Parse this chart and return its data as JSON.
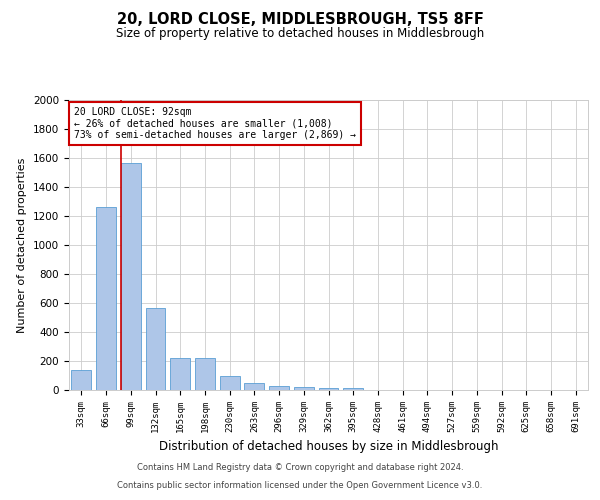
{
  "title": "20, LORD CLOSE, MIDDLESBROUGH, TS5 8FF",
  "subtitle": "Size of property relative to detached houses in Middlesbrough",
  "xlabel": "Distribution of detached houses by size in Middlesbrough",
  "ylabel": "Number of detached properties",
  "categories": [
    "33sqm",
    "66sqm",
    "99sqm",
    "132sqm",
    "165sqm",
    "198sqm",
    "230sqm",
    "263sqm",
    "296sqm",
    "329sqm",
    "362sqm",
    "395sqm",
    "428sqm",
    "461sqm",
    "494sqm",
    "527sqm",
    "559sqm",
    "592sqm",
    "625sqm",
    "658sqm",
    "691sqm"
  ],
  "values": [
    140,
    1265,
    1565,
    565,
    220,
    220,
    95,
    50,
    25,
    20,
    15,
    15,
    0,
    0,
    0,
    0,
    0,
    0,
    0,
    0,
    0
  ],
  "bar_color": "#aec6e8",
  "bar_edge_color": "#5a9fd4",
  "vline_x_index": 2,
  "vline_color": "#cc0000",
  "annotation_text": "20 LORD CLOSE: 92sqm\n← 26% of detached houses are smaller (1,008)\n73% of semi-detached houses are larger (2,869) →",
  "annotation_box_color": "#ffffff",
  "annotation_box_edge": "#cc0000",
  "ylim": [
    0,
    2000
  ],
  "yticks": [
    0,
    200,
    400,
    600,
    800,
    1000,
    1200,
    1400,
    1600,
    1800,
    2000
  ],
  "bg_color": "#ffffff",
  "grid_color": "#cccccc",
  "footer1": "Contains HM Land Registry data © Crown copyright and database right 2024.",
  "footer2": "Contains public sector information licensed under the Open Government Licence v3.0."
}
